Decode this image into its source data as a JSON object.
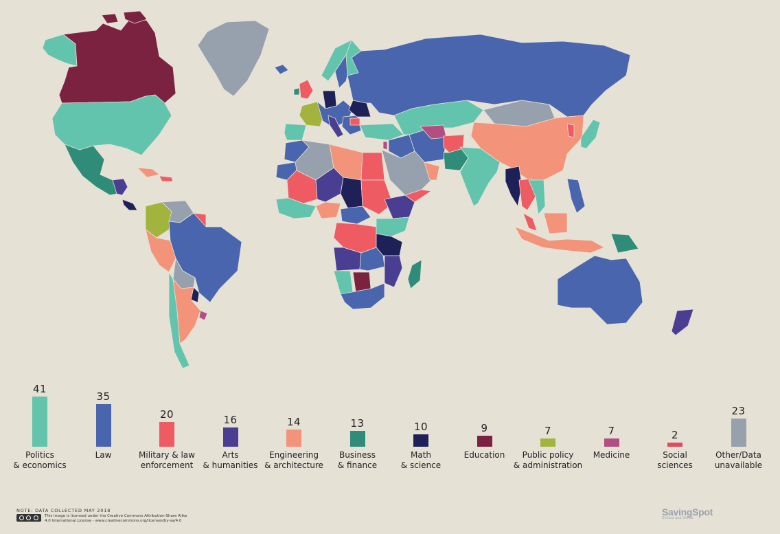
{
  "colors": {
    "background": "#e6e1d5",
    "politics": "#62c4ac",
    "law": "#4865ae",
    "military": "#ef5b63",
    "arts": "#4a3e93",
    "engineering": "#f3937a",
    "business": "#2e8c78",
    "math": "#1e2158",
    "education": "#7b2240",
    "public_policy": "#a2b43e",
    "medicine": "#b14f83",
    "social": "#e04c5e",
    "other": "#96a1ad"
  },
  "legend": [
    {
      "value": "41",
      "label_1": "Politics",
      "label_2": "& economics",
      "color_key": "politics",
      "count": 41
    },
    {
      "value": "35",
      "label_1": "Law",
      "label_2": "",
      "color_key": "law",
      "count": 35
    },
    {
      "value": "20",
      "label_1": "Military & law",
      "label_2": "enforcement",
      "color_key": "military",
      "count": 20
    },
    {
      "value": "16",
      "label_1": "Arts",
      "label_2": "& humanities",
      "color_key": "arts",
      "count": 16
    },
    {
      "value": "14",
      "label_1": "Engineering",
      "label_2": "& architecture",
      "color_key": "engineering",
      "count": 14
    },
    {
      "value": "13",
      "label_1": "Business",
      "label_2": "& finance",
      "color_key": "business",
      "count": 13
    },
    {
      "value": "10",
      "label_1": "Math",
      "label_2": "& science",
      "color_key": "math",
      "count": 10
    },
    {
      "value": "9",
      "label_1": "Education",
      "label_2": "",
      "color_key": "education",
      "count": 9
    },
    {
      "value": "7",
      "label_1": "Public policy",
      "label_2": "& administration",
      "color_key": "public_policy",
      "count": 7
    },
    {
      "value": "7",
      "label_1": "Medicine",
      "label_2": "",
      "color_key": "medicine",
      "count": 7
    },
    {
      "value": "2",
      "label_1": "Social",
      "label_2": "sciences",
      "color_key": "social",
      "count": 2
    },
    {
      "value": "23",
      "label_1": "Other/Data",
      "label_2": "unavailable",
      "color_key": "other",
      "count": 23
    }
  ],
  "note": "NOTE: DATA COLLECTED MAY 2018",
  "license_line_1": "This image is licensed under the Creative Commons Attribution-Share Alike",
  "license_line_2": "4.0 International License - www.creativecommons.org/licenses/by-sa/4.0",
  "logo_name": "SavingSpot",
  "logo_tagline": "Dollars and Sense"
}
